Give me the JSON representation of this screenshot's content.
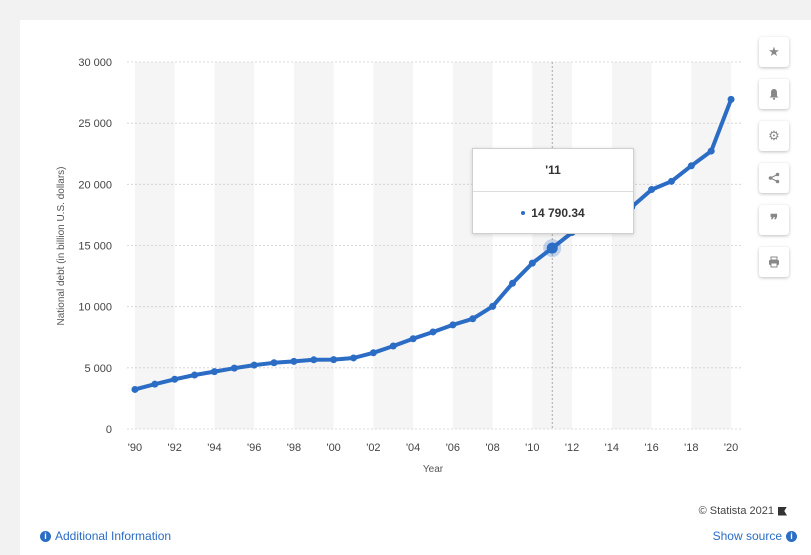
{
  "chart_data": {
    "type": "line",
    "title": "",
    "xlabel": "Year",
    "ylabel": "National debt (in billion U.S. dollars)",
    "ylim": [
      0,
      30000
    ],
    "yticks": [
      0,
      5000,
      10000,
      15000,
      20000,
      25000,
      30000
    ],
    "ytick_labels": [
      "0",
      "5 000",
      "10 000",
      "15 000",
      "20 000",
      "25 000",
      "30 000"
    ],
    "xtick_labels": [
      "'90",
      "'92",
      "'94",
      "'96",
      "'98",
      "'00",
      "'02",
      "'04",
      "'06",
      "'08",
      "'10",
      "'12",
      "'14",
      "'16",
      "'18",
      "'20"
    ],
    "xtick_years": [
      1990,
      1992,
      1994,
      1996,
      1998,
      2000,
      2002,
      2004,
      2006,
      2008,
      2010,
      2012,
      2014,
      2016,
      2018,
      2020
    ],
    "grid": true,
    "series": [
      {
        "name": "",
        "color": "#2b6cc4",
        "x": [
          1990,
          1991,
          1992,
          1993,
          1994,
          1995,
          1996,
          1997,
          1998,
          1999,
          2000,
          2001,
          2002,
          2003,
          2004,
          2005,
          2006,
          2007,
          2008,
          2009,
          2010,
          2011,
          2012,
          2013,
          2014,
          2015,
          2016,
          2017,
          2018,
          2019,
          2020
        ],
        "values": [
          3233,
          3665,
          4065,
          4411,
          4693,
          4974,
          5225,
          5413,
          5526,
          5656,
          5674,
          5807,
          6228,
          6783,
          7379,
          7933,
          8507,
          9008,
          10025,
          11910,
          13562,
          14790,
          16066,
          16738,
          17824,
          18151,
          19573,
          20245,
          21516,
          22719,
          26945
        ]
      }
    ],
    "highlight": {
      "x": 2011,
      "label": "'11",
      "value_label": "14 790.34"
    }
  },
  "footer": {
    "copyright": "© Statista 2021",
    "additional_info": "Additional Information",
    "show_source": "Show source"
  },
  "icons": [
    "star-icon",
    "bell-icon",
    "gear-icon",
    "share-icon",
    "quote-icon",
    "print-icon"
  ]
}
